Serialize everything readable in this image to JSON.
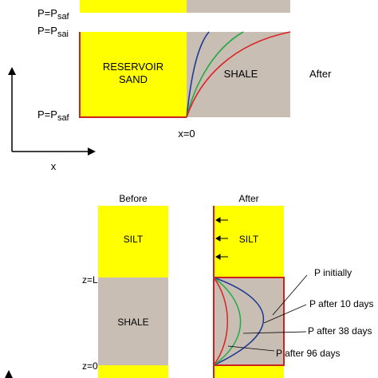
{
  "colors": {
    "sand": "#ffff00",
    "shale": "#c8beb4",
    "boundary": "#cc2222",
    "p_initially": "#1f3a93",
    "p_10_days": "#22aa44",
    "p_38_days": "#22aa44",
    "p_96_days": "#dd2222"
  },
  "top": {
    "label_p_saf_top": "P=P",
    "label_p_saf_top_sub": "saf",
    "label_p_sai": "P=P",
    "label_p_sai_sub": "sai",
    "label_p_saf_bottom": "P=P",
    "label_p_saf_bottom_sub": "saf",
    "reservoir_line1": "RESERVOIR",
    "reservoir_line2": "SAND",
    "shale": "SHALE",
    "after": "After",
    "x0": "x=0",
    "axis_x": "x"
  },
  "bottom": {
    "before_title": "Before",
    "after_title": "After",
    "silt_before": "SILT",
    "silt_after": "SILT",
    "shale_before": "SHALE",
    "z_l": "z=L",
    "z_0": "z=0",
    "legend": {
      "p_initially": "P initially",
      "p_10": "P after 10 days",
      "p_38": "P after 38 days",
      "p_96": "P after 96 days"
    }
  }
}
